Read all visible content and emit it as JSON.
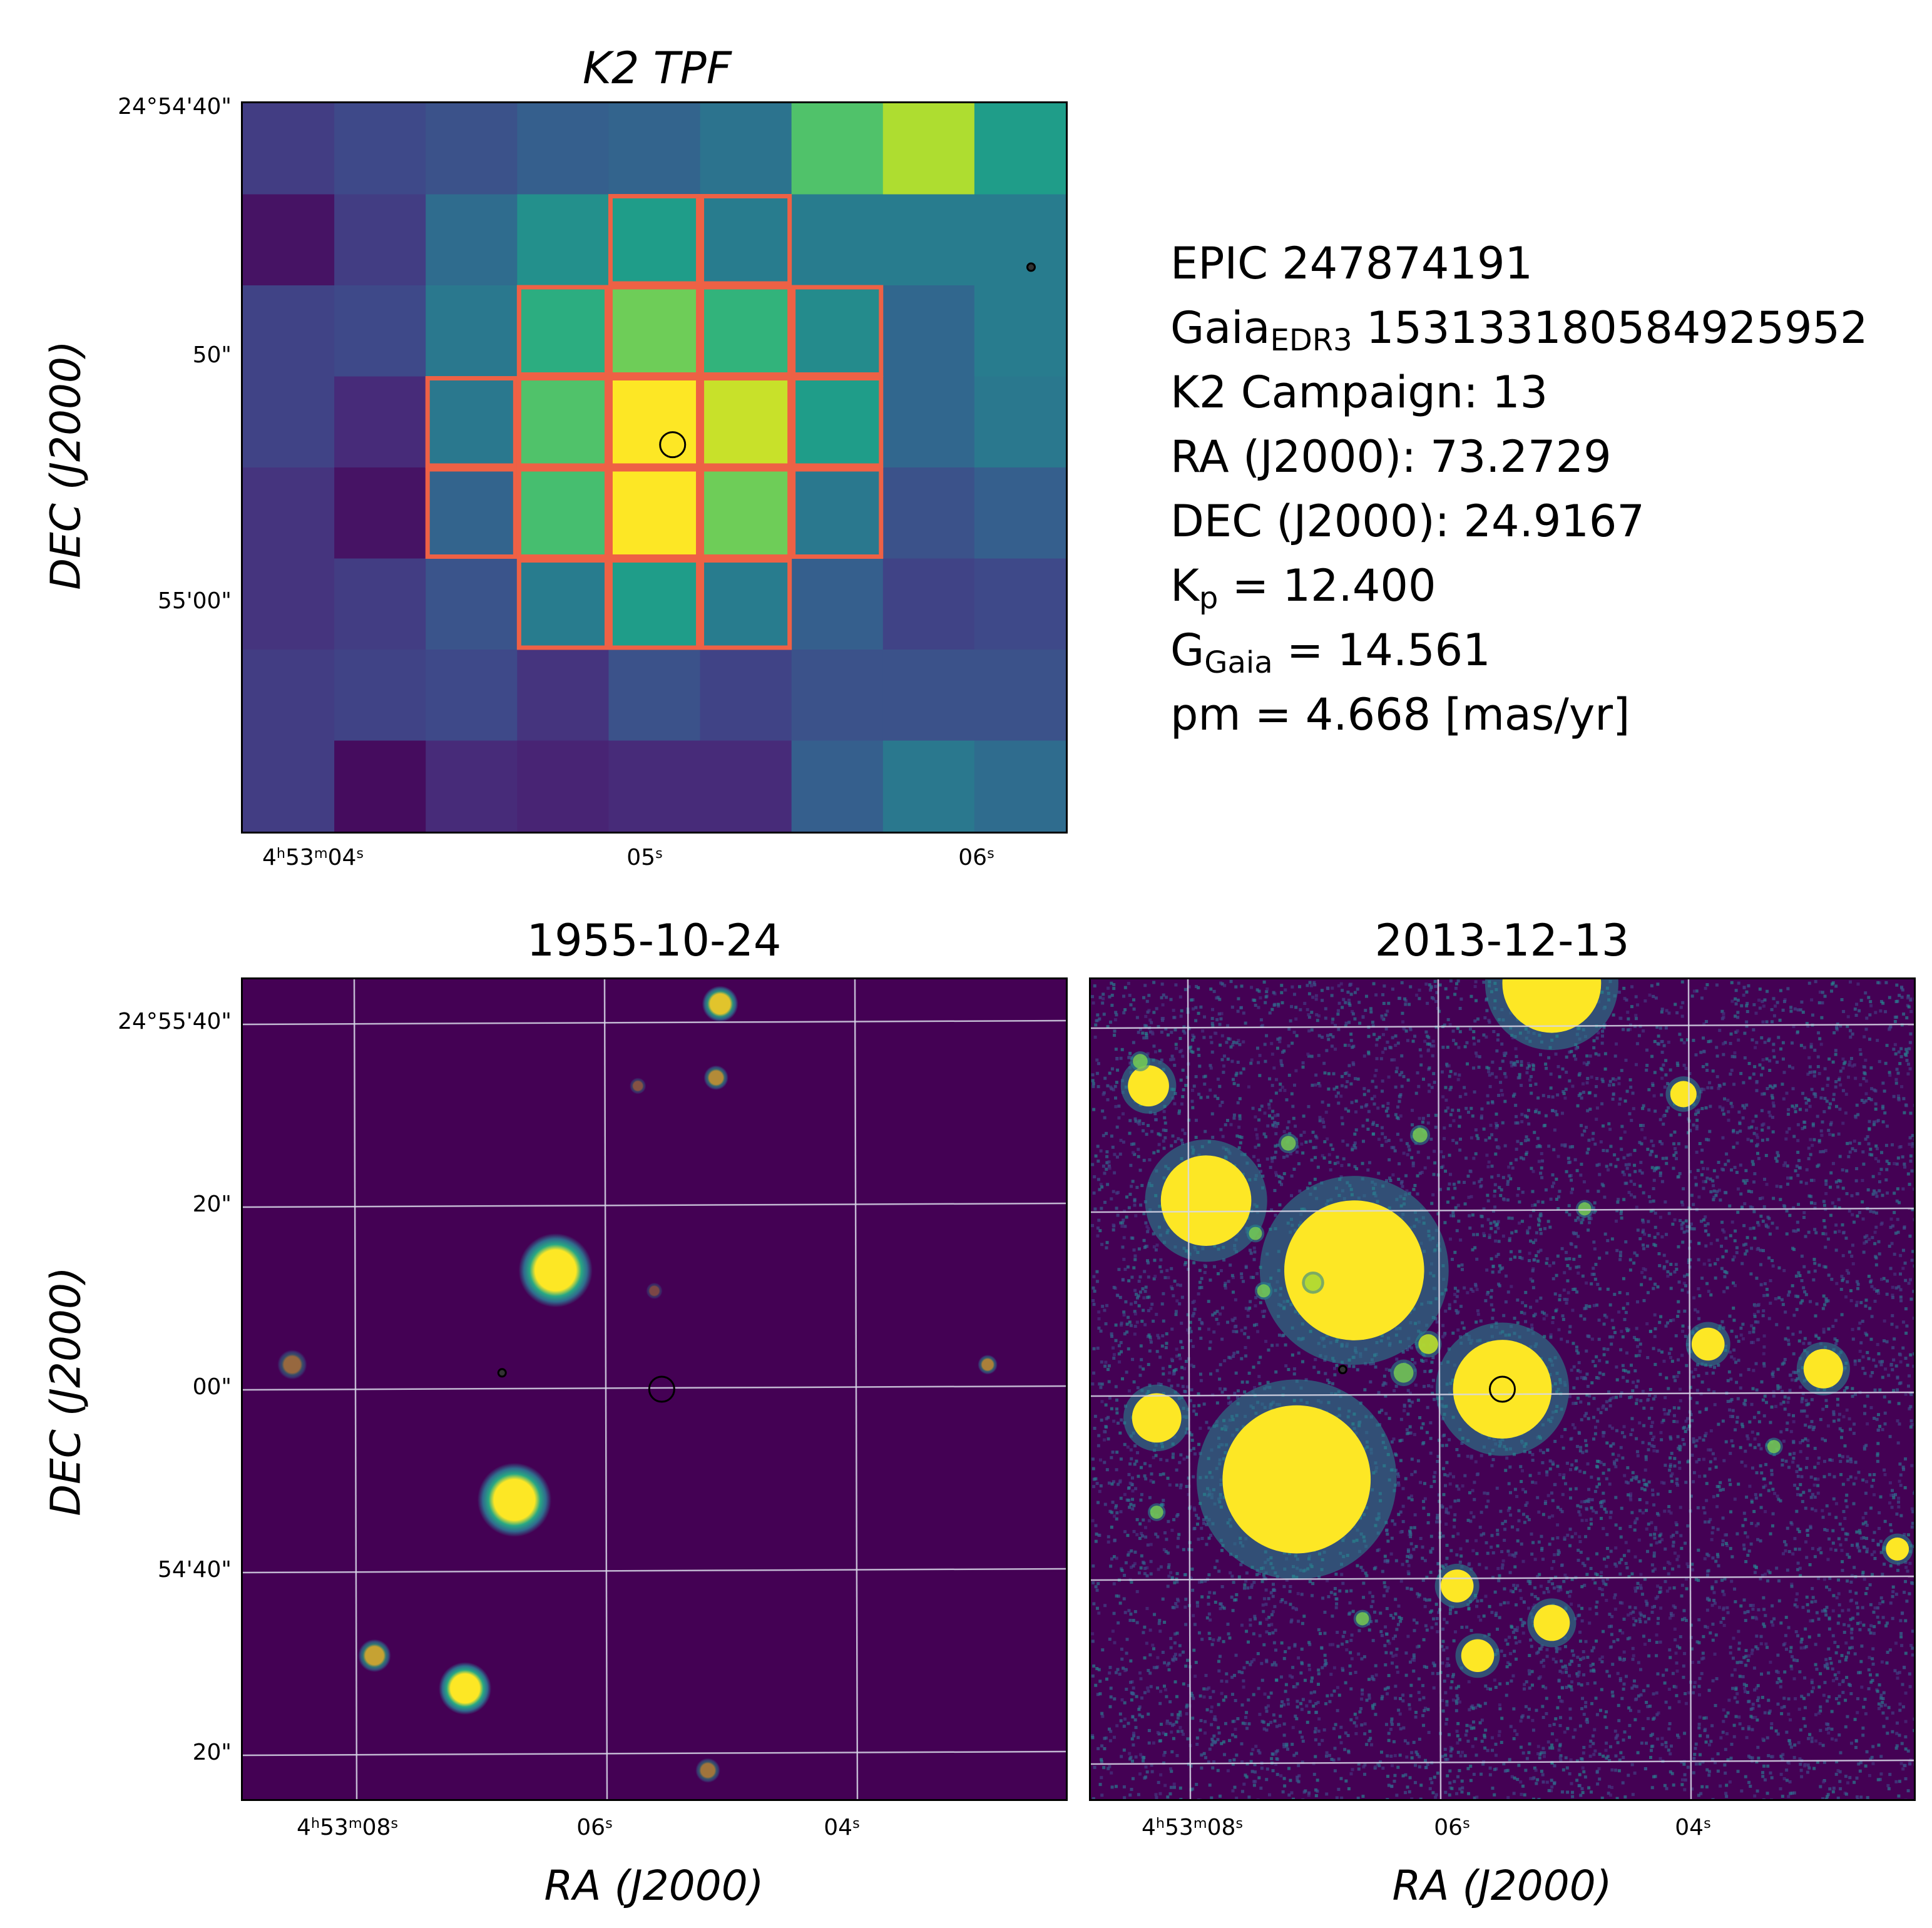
{
  "colors": {
    "viridis_low": "#440154",
    "viridis_high": "#fde725",
    "aperture": "#ee6145",
    "grid": "#d8d8e8"
  },
  "info": {
    "epic": "EPIC 247874191",
    "gaia_label": "Gaia",
    "gaia_sub": "EDR3",
    "gaia_id": "153133180584925952",
    "campaign": "K2 Campaign: 13",
    "ra": "RA (J2000): 73.2729",
    "dec": "DEC (J2000): 24.9167",
    "kp_label": "K",
    "kp_sub": "p",
    "kp_value": "= 12.400",
    "g_label": "G",
    "g_sub": "Gaia",
    "g_value": "= 14.561",
    "pm": "pm = 4.668 [mas/yr]"
  },
  "chart_data": [
    {
      "type": "heatmap",
      "title": "K2 TPF",
      "xlabel": "",
      "ylabel": "DEC (J2000)",
      "ylabel_main": "DEC",
      "ylabel_paren": "(J2000)",
      "xticks": [
        {
          "h": "4",
          "m": "53",
          "s": "04",
          "label": "4h53m04s"
        },
        {
          "s": "05",
          "label": "05s"
        },
        {
          "s": "06",
          "label": "06s"
        }
      ],
      "yticks": [
        "24°54'40\"",
        "50\"",
        "55'00\""
      ],
      "grid_shape": [
        8,
        9
      ],
      "values": [
        [
          0.18,
          0.22,
          0.25,
          0.3,
          0.32,
          0.38,
          0.72,
          0.88,
          0.55
        ],
        [
          0.05,
          0.18,
          0.35,
          0.5,
          0.55,
          0.42,
          0.42,
          0.42,
          0.42
        ],
        [
          0.2,
          0.22,
          0.4,
          0.62,
          0.78,
          0.65,
          0.48,
          0.33,
          0.42
        ],
        [
          0.2,
          0.12,
          0.4,
          0.72,
          1.0,
          0.92,
          0.55,
          0.33,
          0.4
        ],
        [
          0.15,
          0.05,
          0.32,
          0.7,
          1.0,
          0.78,
          0.4,
          0.25,
          0.3
        ],
        [
          0.15,
          0.18,
          0.26,
          0.42,
          0.55,
          0.42,
          0.3,
          0.2,
          0.22
        ],
        [
          0.18,
          0.2,
          0.22,
          0.15,
          0.25,
          0.2,
          0.25,
          0.25,
          0.25
        ],
        [
          0.18,
          0.03,
          0.12,
          0.1,
          0.12,
          0.12,
          0.3,
          0.4,
          0.35
        ]
      ],
      "aperture": [
        [
          0,
          0,
          0,
          0,
          0,
          0,
          0,
          0,
          0
        ],
        [
          0,
          0,
          0,
          0,
          1,
          1,
          0,
          0,
          0
        ],
        [
          0,
          0,
          0,
          1,
          1,
          1,
          1,
          0,
          0
        ],
        [
          0,
          0,
          1,
          1,
          1,
          1,
          1,
          0,
          0
        ],
        [
          0,
          0,
          1,
          1,
          1,
          1,
          1,
          0,
          0
        ],
        [
          0,
          0,
          0,
          1,
          1,
          1,
          0,
          0,
          0
        ],
        [
          0,
          0,
          0,
          0,
          0,
          0,
          0,
          0,
          0
        ],
        [
          0,
          0,
          0,
          0,
          0,
          0,
          0,
          0,
          0
        ]
      ],
      "target": {
        "col": 4.7,
        "row": 3.75
      },
      "neighbors": [
        {
          "col": 8.62,
          "row": 1.8
        }
      ]
    },
    {
      "type": "heatmap",
      "title": "1955-10-24",
      "xlabel": "RA (J2000)",
      "xlabel_main": "RA",
      "xlabel_paren": "(J2000)",
      "ylabel": "DEC (J2000)",
      "ylabel_main": "DEC",
      "ylabel_paren": "(J2000)",
      "xticks": [
        {
          "h": "4",
          "m": "53",
          "s": "08",
          "label": "4h53m08s"
        },
        {
          "s": "06",
          "label": "06s"
        },
        {
          "s": "04",
          "label": "04s"
        }
      ],
      "yticks": [
        "24°55'40\"",
        "20\"",
        "00\"",
        "54'40\"",
        "20\""
      ],
      "field_size": [
        1,
        1
      ],
      "sources": [
        {
          "x": 0.27,
          "y": 0.865,
          "r": 0.032,
          "peak": 1.0
        },
        {
          "x": 0.33,
          "y": 0.635,
          "r": 0.045,
          "peak": 1.0
        },
        {
          "x": 0.38,
          "y": 0.355,
          "r": 0.045,
          "peak": 1.0
        },
        {
          "x": 0.16,
          "y": 0.825,
          "r": 0.02,
          "peak": 0.7
        },
        {
          "x": 0.905,
          "y": 0.47,
          "r": 0.012,
          "peak": 0.55
        },
        {
          "x": 0.565,
          "y": 0.965,
          "r": 0.015,
          "peak": 0.5
        },
        {
          "x": 0.5,
          "y": 0.38,
          "r": 0.01,
          "peak": 0.3
        },
        {
          "x": 0.575,
          "y": 0.12,
          "r": 0.015,
          "peak": 0.6
        },
        {
          "x": 0.48,
          "y": 0.13,
          "r": 0.01,
          "peak": 0.35
        },
        {
          "x": 0.06,
          "y": 0.47,
          "r": 0.018,
          "peak": 0.45
        },
        {
          "x": 0.58,
          "y": 0.03,
          "r": 0.022,
          "peak": 0.85
        }
      ],
      "target": {
        "x": 0.509,
        "y": 0.5
      },
      "neighbors": [
        {
          "x": 0.315,
          "y": 0.48
        }
      ]
    },
    {
      "type": "heatmap",
      "title": "2013-12-13",
      "xlabel": "RA (J2000)",
      "xlabel_main": "RA",
      "xlabel_paren": "(J2000)",
      "ylabel": "",
      "xticks": [
        {
          "h": "4",
          "m": "53",
          "s": "08",
          "label": "4h53m08s"
        },
        {
          "s": "06",
          "label": "06s"
        },
        {
          "s": "04",
          "label": "04s"
        }
      ],
      "yticks": [],
      "field_size": [
        1,
        1
      ],
      "sources": [
        {
          "x": 0.5,
          "y": 0.5,
          "r": 0.06,
          "peak": 1.0
        },
        {
          "x": 0.25,
          "y": 0.61,
          "r": 0.09,
          "peak": 1.0
        },
        {
          "x": 0.32,
          "y": 0.355,
          "r": 0.085,
          "peak": 1.0
        },
        {
          "x": 0.14,
          "y": 0.27,
          "r": 0.055,
          "peak": 1.0
        },
        {
          "x": 0.08,
          "y": 0.535,
          "r": 0.03,
          "peak": 1.0
        },
        {
          "x": 0.07,
          "y": 0.13,
          "r": 0.025,
          "peak": 1.0
        },
        {
          "x": 0.56,
          "y": 0.005,
          "r": 0.06,
          "peak": 1.0
        },
        {
          "x": 0.47,
          "y": 0.825,
          "r": 0.02,
          "peak": 1.0
        },
        {
          "x": 0.56,
          "y": 0.785,
          "r": 0.022,
          "peak": 1.0
        },
        {
          "x": 0.445,
          "y": 0.74,
          "r": 0.02,
          "peak": 1.0
        },
        {
          "x": 0.75,
          "y": 0.445,
          "r": 0.02,
          "peak": 1.0
        },
        {
          "x": 0.89,
          "y": 0.475,
          "r": 0.024,
          "peak": 1.0
        },
        {
          "x": 0.98,
          "y": 0.695,
          "r": 0.014,
          "peak": 1.0
        },
        {
          "x": 0.72,
          "y": 0.14,
          "r": 0.016,
          "peak": 1.0
        },
        {
          "x": 0.41,
          "y": 0.445,
          "r": 0.012,
          "peak": 0.9
        },
        {
          "x": 0.27,
          "y": 0.37,
          "r": 0.01,
          "peak": 0.9
        },
        {
          "x": 0.21,
          "y": 0.38,
          "r": 0.008,
          "peak": 0.8
        },
        {
          "x": 0.2,
          "y": 0.31,
          "r": 0.008,
          "peak": 0.8
        },
        {
          "x": 0.33,
          "y": 0.78,
          "r": 0.008,
          "peak": 0.8
        },
        {
          "x": 0.08,
          "y": 0.65,
          "r": 0.008,
          "peak": 0.8
        },
        {
          "x": 0.6,
          "y": 0.28,
          "r": 0.008,
          "peak": 0.8
        },
        {
          "x": 0.83,
          "y": 0.57,
          "r": 0.008,
          "peak": 0.8
        },
        {
          "x": 0.38,
          "y": 0.48,
          "r": 0.012,
          "peak": 0.8
        },
        {
          "x": 0.24,
          "y": 0.2,
          "r": 0.009,
          "peak": 0.8
        },
        {
          "x": 0.4,
          "y": 0.19,
          "r": 0.009,
          "peak": 0.8
        },
        {
          "x": 0.06,
          "y": 0.1,
          "r": 0.009,
          "peak": 0.8
        }
      ],
      "target": {
        "x": 0.5,
        "y": 0.5
      },
      "neighbors": [
        {
          "x": 0.306,
          "y": 0.476
        }
      ]
    }
  ]
}
